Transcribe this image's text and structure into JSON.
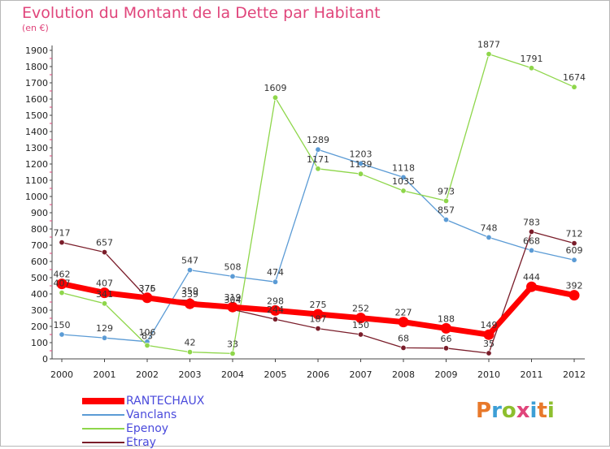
{
  "chart_data": {
    "type": "line",
    "title": "Evolution du Montant de la Dette par Habitant",
    "subtitle": "(en €)",
    "x": [
      "2000",
      "2001",
      "2002",
      "2003",
      "2004",
      "2005",
      "2006",
      "2007",
      "2008",
      "2009",
      "2010",
      "2011",
      "2012"
    ],
    "ylim": [
      0,
      1900
    ],
    "yticks": [
      0,
      100,
      200,
      300,
      400,
      500,
      600,
      700,
      800,
      900,
      1000,
      1100,
      1200,
      1300,
      1400,
      1500,
      1600,
      1700,
      1800,
      1900
    ],
    "grid": false,
    "series": [
      {
        "name": "Vanclans",
        "color": "#5b9bd5",
        "values": [
          150,
          129,
          106,
          547,
          508,
          474,
          1289,
          1203,
          1118,
          857,
          748,
          668,
          609
        ]
      },
      {
        "name": "Epenoy",
        "color": "#8ed64a",
        "values": [
          407,
          341,
          83,
          42,
          33,
          1609,
          1171,
          1139,
          1035,
          973,
          1877,
          1791,
          1674
        ]
      },
      {
        "name": "Etray",
        "color": "#7a1d2a",
        "values": [
          717,
          657,
          375,
          359,
          304,
          244,
          187,
          150,
          68,
          66,
          35,
          783,
          712
        ]
      },
      {
        "name": "RANTECHAUX",
        "color": "#ff0000",
        "values": [
          462,
          407,
          376,
          339,
          319,
          298,
          275,
          252,
          227,
          188,
          149,
          444,
          392
        ]
      }
    ],
    "legend_position": "bottom-left",
    "data_labels": [
      {
        "text": "462",
        "x": "2000",
        "y": 462
      },
      {
        "text": "407",
        "x": "2000",
        "y": 407
      },
      {
        "text": "717",
        "x": "2000",
        "y": 717
      },
      {
        "text": "150",
        "x": "2000",
        "y": 150
      },
      {
        "text": "407",
        "x": "2001",
        "y": 407
      },
      {
        "text": "341",
        "x": "2001",
        "y": 341
      },
      {
        "text": "657",
        "x": "2001",
        "y": 657
      },
      {
        "text": "129",
        "x": "2001",
        "y": 129
      },
      {
        "text": "376",
        "x": "2002",
        "y": 376
      },
      {
        "text": "375",
        "x": "2002",
        "y": 375
      },
      {
        "text": "106",
        "x": "2002",
        "y": 106
      },
      {
        "text": "83",
        "x": "2002",
        "y": 83
      },
      {
        "text": "547",
        "x": "2003",
        "y": 547
      },
      {
        "text": "339",
        "x": "2003",
        "y": 339
      },
      {
        "text": "359",
        "x": "2003",
        "y": 359
      },
      {
        "text": "42",
        "x": "2003",
        "y": 42
      },
      {
        "text": "508",
        "x": "2004",
        "y": 508
      },
      {
        "text": "319",
        "x": "2004",
        "y": 319
      },
      {
        "text": "304",
        "x": "2004",
        "y": 304
      },
      {
        "text": "33",
        "x": "2004",
        "y": 33
      },
      {
        "text": "1609",
        "x": "2005",
        "y": 1609
      },
      {
        "text": "474",
        "x": "2005",
        "y": 474
      },
      {
        "text": "298",
        "x": "2005",
        "y": 298
      },
      {
        "text": "244",
        "x": "2005",
        "y": 244
      },
      {
        "text": "1289",
        "x": "2006",
        "y": 1289
      },
      {
        "text": "1171",
        "x": "2006",
        "y": 1171
      },
      {
        "text": "275",
        "x": "2006",
        "y": 275
      },
      {
        "text": "187",
        "x": "2006",
        "y": 187
      },
      {
        "text": "1203",
        "x": "2007",
        "y": 1203
      },
      {
        "text": "1139",
        "x": "2007",
        "y": 1139
      },
      {
        "text": "252",
        "x": "2007",
        "y": 252
      },
      {
        "text": "150",
        "x": "2007",
        "y": 150
      },
      {
        "text": "1118",
        "x": "2008",
        "y": 1118
      },
      {
        "text": "1035",
        "x": "2008",
        "y": 1035
      },
      {
        "text": "227",
        "x": "2008",
        "y": 227
      },
      {
        "text": "68",
        "x": "2008",
        "y": 68
      },
      {
        "text": "973",
        "x": "2009",
        "y": 973
      },
      {
        "text": "857",
        "x": "2009",
        "y": 857
      },
      {
        "text": "188",
        "x": "2009",
        "y": 188
      },
      {
        "text": "66",
        "x": "2009",
        "y": 66
      },
      {
        "text": "1877",
        "x": "2010",
        "y": 1877
      },
      {
        "text": "748",
        "x": "2010",
        "y": 748
      },
      {
        "text": "149",
        "x": "2010",
        "y": 149
      },
      {
        "text": "35",
        "x": "2010",
        "y": 35
      },
      {
        "text": "1791",
        "x": "2011",
        "y": 1791
      },
      {
        "text": "783",
        "x": "2011",
        "y": 783
      },
      {
        "text": "668",
        "x": "2011",
        "y": 668
      },
      {
        "text": "444",
        "x": "2011",
        "y": 444
      },
      {
        "text": "1674",
        "x": "2012",
        "y": 1674
      },
      {
        "text": "712",
        "x": "2012",
        "y": 712
      },
      {
        "text": "609",
        "x": "2012",
        "y": 609
      },
      {
        "text": "392",
        "x": "2012",
        "y": 392
      }
    ]
  },
  "legend": {
    "items": [
      {
        "name": "RANTECHAUX",
        "color": "#ff0000"
      },
      {
        "name": "Vanclans",
        "color": "#5b9bd5"
      },
      {
        "name": "Epenoy",
        "color": "#8ed64a"
      },
      {
        "name": "Etray",
        "color": "#7a1d2a"
      }
    ]
  },
  "logo": {
    "text": "Proxiti",
    "letters": [
      {
        "ch": "P",
        "color": "#e8792b"
      },
      {
        "ch": "r",
        "color": "#3d9fd6"
      },
      {
        "ch": "o",
        "color": "#8dbf2e"
      },
      {
        "ch": "x",
        "color": "#e0457b"
      },
      {
        "ch": "i",
        "color": "#3d9fd6"
      },
      {
        "ch": "t",
        "color": "#e8792b"
      },
      {
        "ch": "i",
        "color": "#8dbf2e"
      }
    ]
  }
}
